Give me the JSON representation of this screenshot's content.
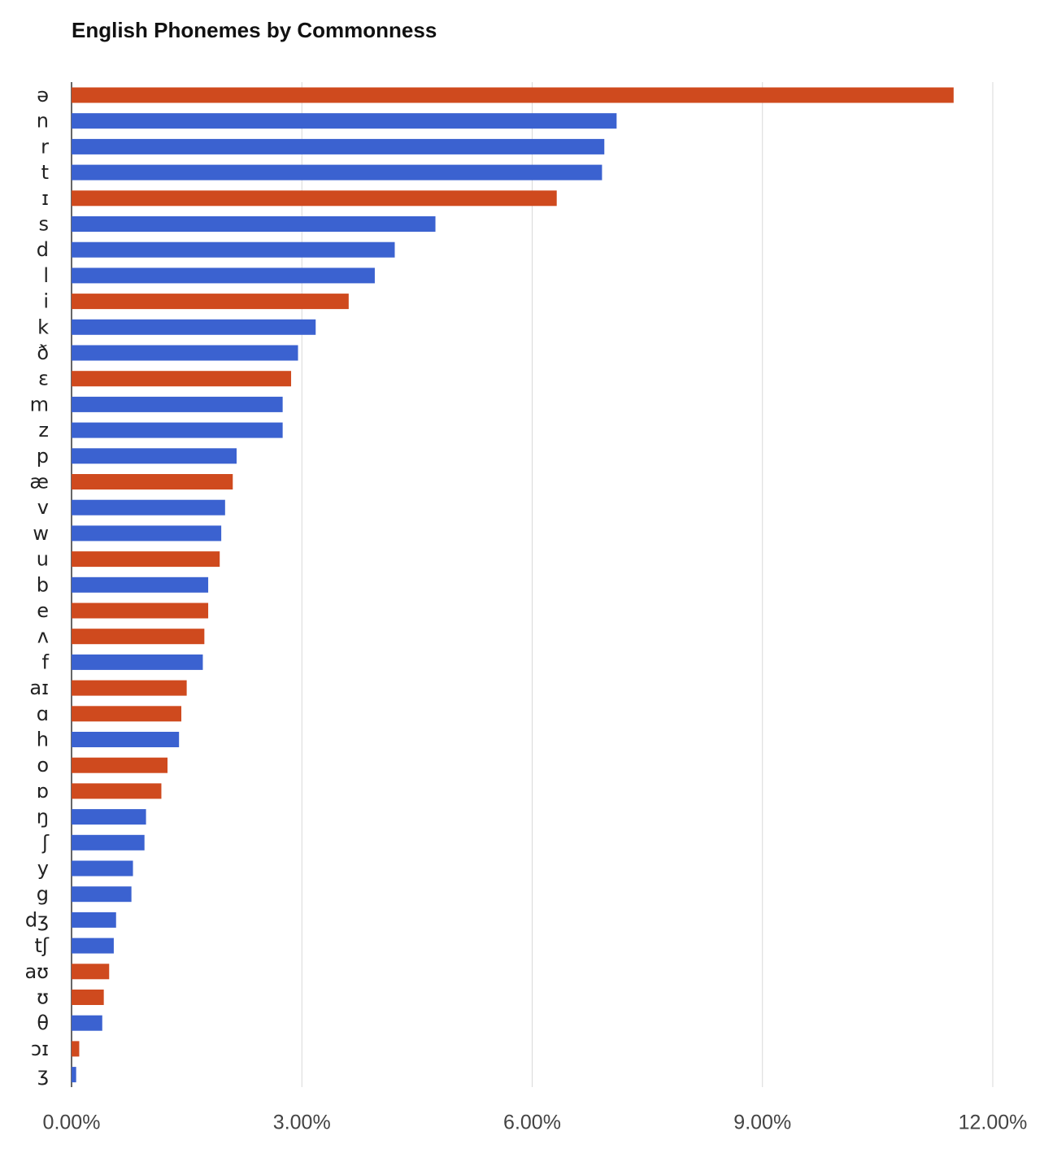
{
  "chart_data": {
    "type": "bar",
    "orientation": "horizontal",
    "title": "English Phonemes by Commonness",
    "xlabel": "",
    "ylabel": "",
    "xlim": [
      0,
      12
    ],
    "x_ticks": [
      0,
      3,
      6,
      9,
      12
    ],
    "x_tick_labels": [
      "0.00%",
      "3.00%",
      "6.00%",
      "9.00%",
      "12.00%"
    ],
    "grid": true,
    "legend": "none",
    "colors": {
      "vowel": "#cf4a1e",
      "consonant": "#3b62d0"
    },
    "categories": [
      "ə",
      "n",
      "r",
      "t",
      "ɪ",
      "s",
      "d",
      "l",
      "i",
      "k",
      "ð",
      "ɛ",
      "m",
      "z",
      "p",
      "æ",
      "v",
      "w",
      "u",
      "b",
      "e",
      "ʌ",
      "f",
      "aɪ",
      "ɑ",
      "h",
      "o",
      "ɒ",
      "ŋ",
      "ʃ",
      "y",
      "g",
      "dʒ",
      "tʃ",
      "aʊ",
      "ʊ",
      "θ",
      "ɔɪ",
      "ʒ"
    ],
    "values": [
      11.49,
      7.1,
      6.94,
      6.91,
      6.32,
      4.74,
      4.21,
      3.95,
      3.61,
      3.18,
      2.95,
      2.86,
      2.75,
      2.75,
      2.15,
      2.1,
      2.0,
      1.95,
      1.93,
      1.78,
      1.78,
      1.73,
      1.71,
      1.5,
      1.43,
      1.4,
      1.25,
      1.17,
      0.97,
      0.95,
      0.8,
      0.78,
      0.58,
      0.55,
      0.49,
      0.42,
      0.4,
      0.1,
      0.06
    ],
    "kinds": [
      "vowel",
      "consonant",
      "consonant",
      "consonant",
      "vowel",
      "consonant",
      "consonant",
      "consonant",
      "vowel",
      "consonant",
      "consonant",
      "vowel",
      "consonant",
      "consonant",
      "consonant",
      "vowel",
      "consonant",
      "consonant",
      "vowel",
      "consonant",
      "vowel",
      "vowel",
      "consonant",
      "vowel",
      "vowel",
      "consonant",
      "vowel",
      "vowel",
      "consonant",
      "consonant",
      "consonant",
      "consonant",
      "consonant",
      "consonant",
      "vowel",
      "vowel",
      "consonant",
      "vowel",
      "consonant"
    ]
  }
}
